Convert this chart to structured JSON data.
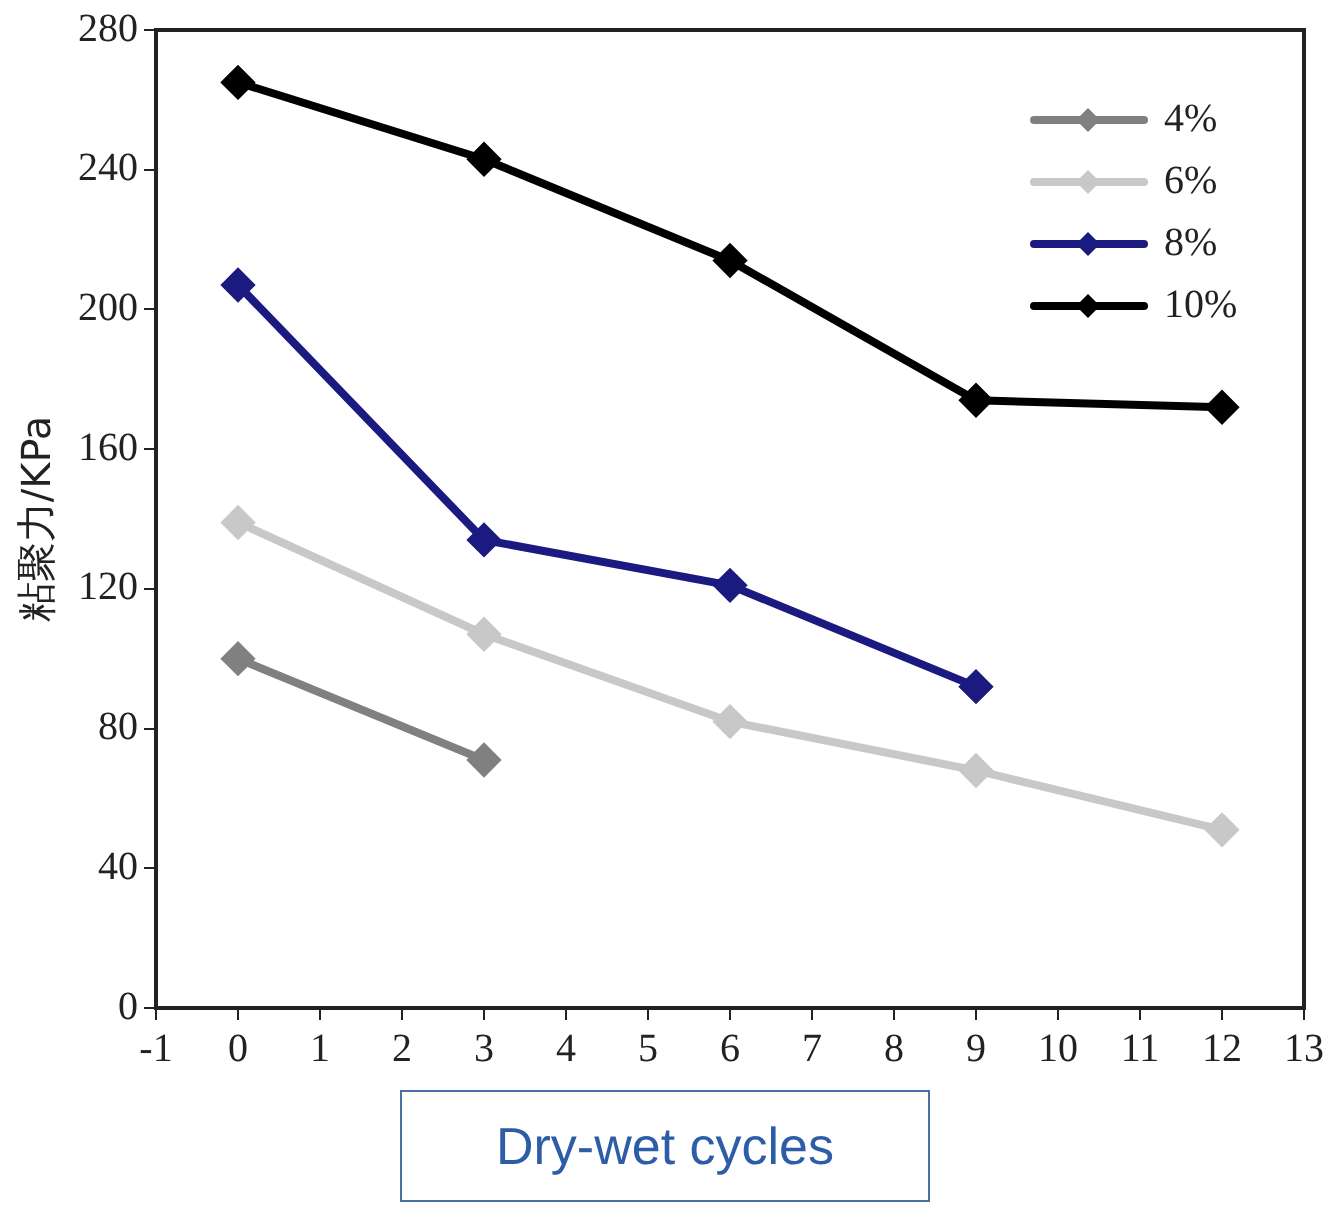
{
  "chart_data": {
    "type": "line",
    "xlabel": "Dry-wet cycles",
    "ylabel": "粘聚力/KPa",
    "xlim": [
      -1,
      13
    ],
    "xticks": [
      -1,
      0,
      1,
      2,
      3,
      4,
      5,
      6,
      7,
      8,
      9,
      10,
      11,
      12,
      13
    ],
    "ylim": [
      0,
      280
    ],
    "yticks": [
      0,
      40,
      80,
      120,
      160,
      200,
      240,
      280
    ],
    "grid": false,
    "legend": "top right",
    "marker": "diamond",
    "line_style": "solid",
    "series": [
      {
        "name": "4%",
        "color": "#808080",
        "x": [
          0,
          3
        ],
        "values": [
          100,
          71
        ]
      },
      {
        "name": "6%",
        "color": "#c8c8c8",
        "x": [
          0,
          3,
          6,
          9,
          12
        ],
        "values": [
          139,
          107,
          82,
          68,
          51
        ]
      },
      {
        "name": "8%",
        "color": "#1a1a80",
        "x": [
          0,
          3,
          6,
          9
        ],
        "values": [
          207,
          134,
          121,
          92
        ]
      },
      {
        "name": "10%",
        "color": "#000000",
        "x": [
          0,
          3,
          6,
          9,
          12
        ],
        "values": [
          265,
          243,
          214,
          174,
          172
        ]
      }
    ]
  }
}
